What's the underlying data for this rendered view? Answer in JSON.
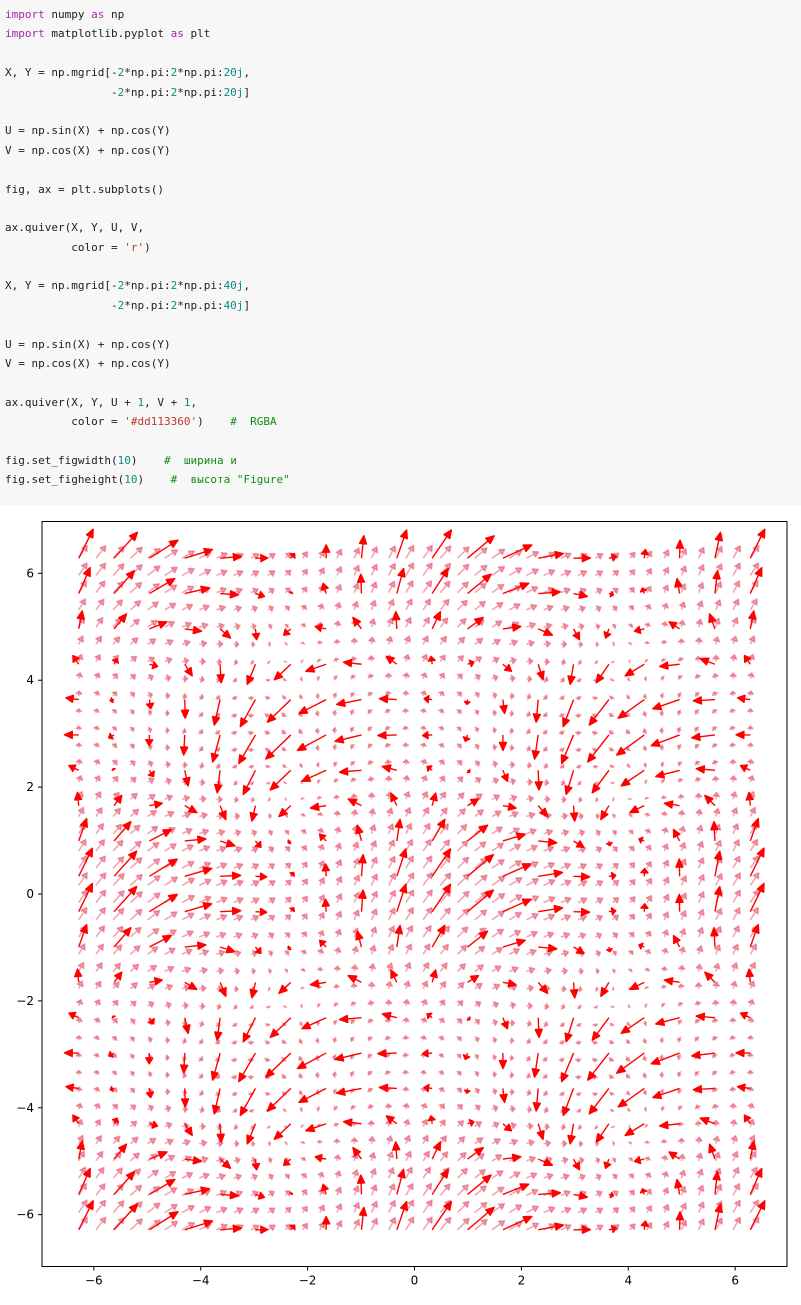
{
  "code": {
    "lines": [
      [
        {
          "t": "import",
          "c": "kw"
        },
        {
          "t": " numpy ",
          "c": ""
        },
        {
          "t": "as",
          "c": "kw"
        },
        {
          "t": " np",
          "c": ""
        }
      ],
      [
        {
          "t": "import",
          "c": "kw"
        },
        {
          "t": " matplotlib.pyplot ",
          "c": ""
        },
        {
          "t": "as",
          "c": "kw"
        },
        {
          "t": " plt",
          "c": ""
        }
      ],
      [],
      [
        {
          "t": "X, Y = np.mgrid[-",
          "c": ""
        },
        {
          "t": "2",
          "c": "num"
        },
        {
          "t": "*np.pi:",
          "c": ""
        },
        {
          "t": "2",
          "c": "num"
        },
        {
          "t": "*np.pi:",
          "c": ""
        },
        {
          "t": "20j",
          "c": "num"
        },
        {
          "t": ",",
          "c": ""
        }
      ],
      [
        {
          "t": "                -",
          "c": ""
        },
        {
          "t": "2",
          "c": "num"
        },
        {
          "t": "*np.pi:",
          "c": ""
        },
        {
          "t": "2",
          "c": "num"
        },
        {
          "t": "*np.pi:",
          "c": ""
        },
        {
          "t": "20j",
          "c": "num"
        },
        {
          "t": "]",
          "c": ""
        }
      ],
      [],
      [
        {
          "t": "U = np.sin(X) + np.cos(Y)",
          "c": ""
        }
      ],
      [
        {
          "t": "V = np.cos(X) + np.cos(Y)",
          "c": ""
        }
      ],
      [],
      [
        {
          "t": "fig, ax = plt.subplots()",
          "c": ""
        }
      ],
      [],
      [
        {
          "t": "ax.quiver(X, Y, U, V,",
          "c": ""
        }
      ],
      [
        {
          "t": "          color = ",
          "c": ""
        },
        {
          "t": "'r'",
          "c": "str"
        },
        {
          "t": ")",
          "c": ""
        }
      ],
      [],
      [
        {
          "t": "X, Y = np.mgrid[-",
          "c": ""
        },
        {
          "t": "2",
          "c": "num"
        },
        {
          "t": "*np.pi:",
          "c": ""
        },
        {
          "t": "2",
          "c": "num"
        },
        {
          "t": "*np.pi:",
          "c": ""
        },
        {
          "t": "40j",
          "c": "num"
        },
        {
          "t": ",",
          "c": ""
        }
      ],
      [
        {
          "t": "                -",
          "c": ""
        },
        {
          "t": "2",
          "c": "num"
        },
        {
          "t": "*np.pi:",
          "c": ""
        },
        {
          "t": "2",
          "c": "num"
        },
        {
          "t": "*np.pi:",
          "c": ""
        },
        {
          "t": "40j",
          "c": "num"
        },
        {
          "t": "]",
          "c": ""
        }
      ],
      [],
      [
        {
          "t": "U = np.sin(X) + np.cos(Y)",
          "c": ""
        }
      ],
      [
        {
          "t": "V = np.cos(X) + np.cos(Y)",
          "c": ""
        }
      ],
      [],
      [
        {
          "t": "ax.quiver(X, Y, U + ",
          "c": ""
        },
        {
          "t": "1",
          "c": "num"
        },
        {
          "t": ", V + ",
          "c": ""
        },
        {
          "t": "1",
          "c": "num"
        },
        {
          "t": ",",
          "c": ""
        }
      ],
      [
        {
          "t": "          color = ",
          "c": ""
        },
        {
          "t": "'#dd113360'",
          "c": "str"
        },
        {
          "t": ")    ",
          "c": ""
        },
        {
          "t": "#  RGBA",
          "c": "cm"
        }
      ],
      [],
      [
        {
          "t": "fig.set_figwidth(",
          "c": ""
        },
        {
          "t": "10",
          "c": "num"
        },
        {
          "t": ")    ",
          "c": ""
        },
        {
          "t": "#  ширина и",
          "c": "cm"
        }
      ],
      [
        {
          "t": "fig.set_figheight(",
          "c": ""
        },
        {
          "t": "10",
          "c": "num"
        },
        {
          "t": ")    ",
          "c": ""
        },
        {
          "t": "#  высота \"Figure\"",
          "c": "cm"
        }
      ],
      [],
      [
        {
          "t": "plt.show()",
          "c": ""
        }
      ]
    ]
  },
  "colors": {
    "primary_arrows": "#ff0000",
    "secondary_arrows": "#dd1133",
    "secondary_alpha": 0.376
  },
  "chart_data": {
    "type": "quiver",
    "xlim": [
      -6.97,
      6.97
    ],
    "ylim": [
      -6.97,
      6.97
    ],
    "xticks": [
      -6,
      -4,
      -2,
      0,
      2,
      4,
      6
    ],
    "yticks": [
      -6,
      -4,
      -2,
      0,
      2,
      4,
      6
    ],
    "xtick_labels": [
      "−6",
      "−4",
      "−2",
      "0",
      "2",
      "4",
      "6"
    ],
    "ytick_labels": [
      "−6",
      "−4",
      "−2",
      "0",
      "2",
      "4",
      "6"
    ],
    "grid": false,
    "series": [
      {
        "grid_range": [
          -6.2832,
          6.2832
        ],
        "grid_n": 20,
        "u": "sin(x) + cos(y)",
        "v": "cos(x) + cos(y)",
        "color": "#ff0000",
        "alpha": 1.0
      },
      {
        "grid_range": [
          -6.2832,
          6.2832
        ],
        "grid_n": 40,
        "u": "sin(x) + cos(y) + 1",
        "v": "cos(x) + cos(y) + 1",
        "color": "#dd1133",
        "alpha": 0.376
      }
    ]
  }
}
